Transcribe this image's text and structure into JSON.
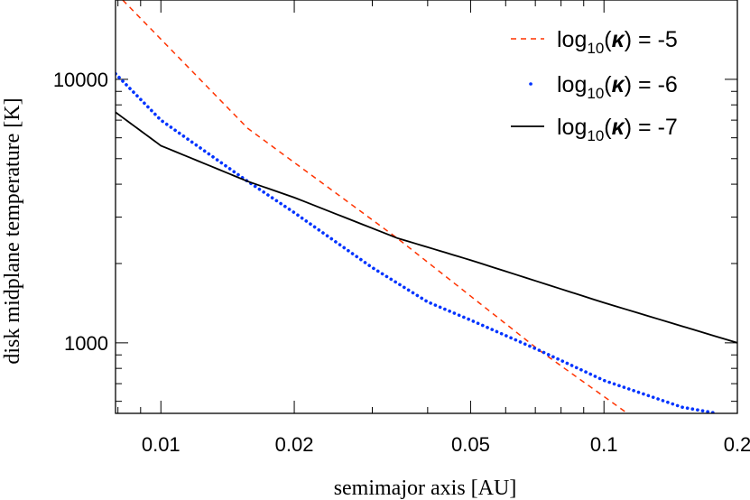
{
  "chart_data": {
    "type": "line",
    "xlabel": "semimajor axis [AU]",
    "ylabel": "disk midplane temperature [K]",
    "x_scale": "log",
    "y_scale": "log",
    "xlim": [
      0.0079,
      0.2
    ],
    "ylim": [
      540,
      20000
    ],
    "x_ticks": [
      {
        "value": 0.01,
        "label": "0.01"
      },
      {
        "value": 0.02,
        "label": "0.02"
      },
      {
        "value": 0.05,
        "label": "0.05"
      },
      {
        "value": 0.1,
        "label": "0.1"
      },
      {
        "value": 0.2,
        "label": "0.2"
      }
    ],
    "y_ticks": [
      {
        "value": 1000,
        "label": "1000"
      },
      {
        "value": 10000,
        "label": "10000"
      }
    ],
    "grid": false,
    "legend_position": "top-right",
    "legend": [
      {
        "base": "log",
        "sub": "10",
        "mid": "(",
        "sym": "κ",
        "tail": ") = -5",
        "color": "#ff3300",
        "style": "dashed"
      },
      {
        "base": "log",
        "sub": "10",
        "mid": "(",
        "sym": "κ",
        "tail": ") = -6",
        "color": "#0033ff",
        "style": "dotted"
      },
      {
        "base": "log",
        "sub": "10",
        "mid": "(",
        "sym": "κ",
        "tail": ") = -7",
        "color": "#000000",
        "style": "solid"
      }
    ],
    "series": [
      {
        "name": "log10(κ) = -5",
        "color": "#ff3300",
        "style": "dashed",
        "x": [
          0.0082,
          0.0157,
          0.0341,
          0.0715,
          0.113
        ],
        "y": [
          20000,
          6520,
          2500,
          936,
          540
        ]
      },
      {
        "name": "log10(κ) = -6",
        "color": "#0033ff",
        "style": "dotted",
        "x": [
          0.0079,
          0.01,
          0.0157,
          0.02,
          0.03,
          0.04,
          0.05,
          0.0715,
          0.1,
          0.15,
          0.18
        ],
        "y": [
          10500,
          7000,
          4100,
          3120,
          1930,
          1430,
          1220,
          936,
          720,
          570,
          540
        ]
      },
      {
        "name": "log10(κ) = -7",
        "color": "#000000",
        "style": "solid",
        "x": [
          0.0079,
          0.01,
          0.0157,
          0.02,
          0.0341,
          0.05,
          0.1,
          0.2
        ],
        "y": [
          7500,
          5600,
          4100,
          3560,
          2500,
          2060,
          1420,
          1000
        ]
      }
    ]
  }
}
